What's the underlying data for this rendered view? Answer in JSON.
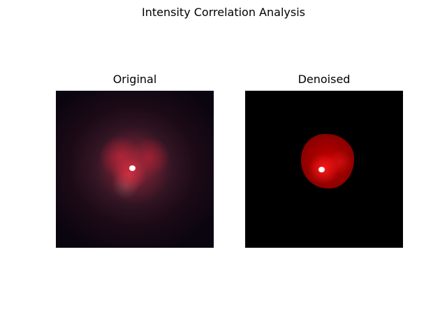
{
  "figure": {
    "title": "Intensity Correlation Analysis"
  },
  "panels": [
    {
      "title": "Original"
    },
    {
      "title": "Denoised"
    }
  ],
  "colors": {
    "original_background": "#0b0510",
    "denoised_background": "#000000",
    "signal": "#e02030",
    "highlight": "#ffffff"
  }
}
